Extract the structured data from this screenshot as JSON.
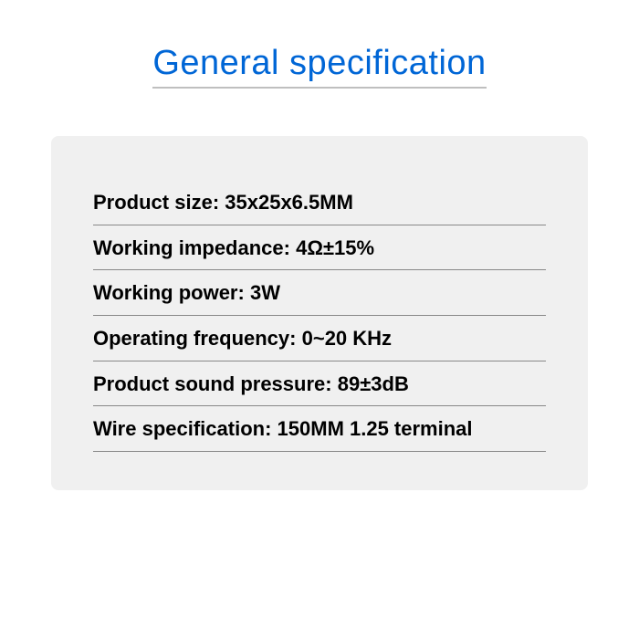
{
  "title": "General specification",
  "title_color": "#0066d6",
  "title_fontsize": 38,
  "underline_color": "#bfbfbf",
  "card": {
    "background_color": "#f0f0f0",
    "border_radius": 8,
    "row_border_color": "#888888",
    "text_color": "#000000",
    "text_fontsize": 22,
    "text_fontweight": 700
  },
  "specs": [
    {
      "label": "Product size",
      "value": "35x25x6.5MM"
    },
    {
      "label": "Working impedance",
      "value": "4Ω±15%"
    },
    {
      "label": "Working power",
      "value": "3W"
    },
    {
      "label": "Operating frequency",
      "value": "0~20 KHz"
    },
    {
      "label": "Product sound pressure",
      "value": "89±3dB"
    },
    {
      "label": "Wire specification",
      "value": "150MM 1.25 terminal"
    }
  ]
}
